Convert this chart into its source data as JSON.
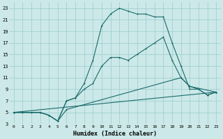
{
  "xlabel": "Humidex (Indice chaleur)",
  "bg_color": "#cce8e8",
  "grid_color": "#99cccc",
  "line_color": "#1a6b6b",
  "xlim": [
    -0.5,
    23.5
  ],
  "ylim": [
    3,
    24
  ],
  "xticks": [
    0,
    1,
    2,
    3,
    4,
    5,
    6,
    7,
    8,
    9,
    10,
    11,
    12,
    13,
    14,
    15,
    16,
    17,
    18,
    19,
    20,
    21,
    22,
    23
  ],
  "yticks": [
    3,
    5,
    7,
    9,
    11,
    13,
    15,
    17,
    19,
    21,
    23
  ],
  "line1_x": [
    0,
    1,
    2,
    3,
    4,
    5,
    6,
    7,
    8,
    9,
    10,
    11,
    12,
    13,
    14,
    15,
    16,
    17,
    18,
    19,
    20,
    21,
    22,
    23
  ],
  "line1_y": [
    5,
    5,
    5,
    5,
    4.5,
    3.5,
    7,
    7.5,
    10,
    14,
    20,
    22,
    23,
    22.5,
    22,
    22,
    21.5,
    21.5,
    17,
    13,
    9,
    9,
    8,
    8.5
  ],
  "line2_x": [
    0,
    3,
    4,
    5,
    6,
    7,
    8,
    9,
    10,
    11,
    12,
    13,
    14,
    15,
    16,
    17,
    18,
    19,
    20,
    21,
    22,
    23
  ],
  "line2_y": [
    5,
    5,
    4.5,
    3.5,
    7,
    7.5,
    9,
    10,
    13,
    14.5,
    14.5,
    14,
    15,
    16,
    17,
    18,
    14,
    11,
    9.5,
    9,
    8,
    8.5
  ],
  "line3_x": [
    0,
    23
  ],
  "line3_y": [
    5,
    8.5
  ],
  "line4_x": [
    0,
    3,
    4,
    5,
    6,
    19,
    20,
    23
  ],
  "line4_y": [
    5,
    5,
    4.5,
    3.5,
    5.5,
    11,
    9.5,
    8.5
  ]
}
